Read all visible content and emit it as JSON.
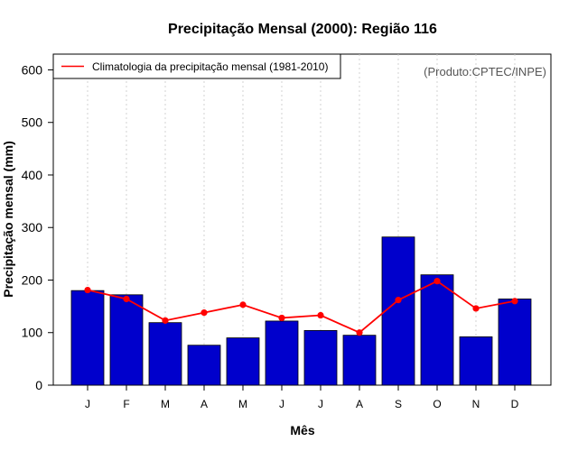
{
  "chart_data": {
    "type": "bar",
    "title": "Precipitação Mensal (2000): Região 116",
    "xlabel": "Mês",
    "ylabel": "Precipitação mensal (mm)",
    "categories": [
      "J",
      "F",
      "M",
      "A",
      "M",
      "J",
      "J",
      "A",
      "S",
      "O",
      "N",
      "D"
    ],
    "ylim": [
      0,
      630
    ],
    "yticks": [
      0,
      100,
      200,
      300,
      400,
      500,
      600
    ],
    "grid": "vertical-dotted",
    "series": [
      {
        "name": "Precipitação mensal (2000)",
        "kind": "bar",
        "color": "#0000cc",
        "values": [
          180,
          172,
          119,
          76,
          90,
          122,
          104,
          95,
          282,
          210,
          92,
          164
        ]
      },
      {
        "name": "Climatologia da precipitação mensal (1981-2010)",
        "kind": "line",
        "color": "#ff0000",
        "values": [
          181,
          164,
          123,
          138,
          153,
          128,
          133,
          100,
          162,
          198,
          146,
          160
        ]
      }
    ],
    "legend": {
      "position": "top-left",
      "entries": [
        "Climatologia da precipitação mensal (1981-2010)"
      ]
    },
    "annotation": "(Produto:CPTEC/INPE)"
  }
}
